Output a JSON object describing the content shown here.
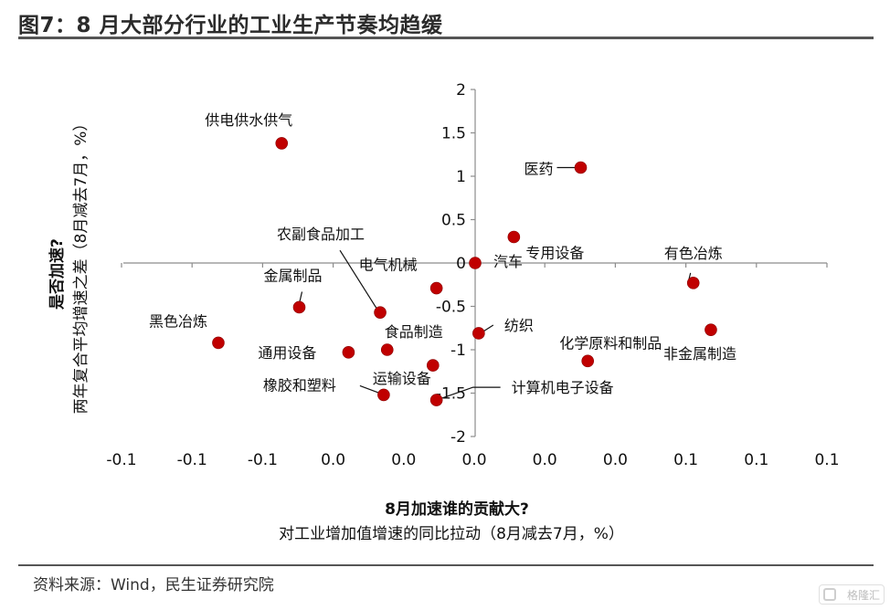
{
  "header": {
    "title": "图7：8 月大部分行业的工业生产节奏均趋缓"
  },
  "footer": {
    "source": "资料来源：Wind，民生证券研究院",
    "watermark": "格隆汇"
  },
  "chart_data": {
    "type": "scatter",
    "title": "图7：8 月大部分行业的工业生产节奏均趋缓",
    "xlabel_bold": "8月加速谁的贡献大?",
    "xlabel": "对工业增加值增速的同比拉动（8月减去7月，%）",
    "ylabel_bold": "是否加速?",
    "ylabel": "两年复合平均增速之差（8月减去7月，%）",
    "xlim": [
      -0.1,
      0.1
    ],
    "ylim": [
      -2,
      2
    ],
    "x_tick_labels": [
      "-0.1",
      "-0.1",
      "-0.1",
      "0.0",
      "0.0",
      "0.0",
      "0.0",
      "0.0",
      "0.1",
      "0.1",
      "0.1"
    ],
    "y_tick_labels": [
      "2",
      "1.5",
      "1",
      "0.5",
      "0",
      "-0.5",
      "-1",
      "-1.5",
      "-2"
    ],
    "grid": false,
    "marker_color": "#c00000",
    "points": [
      {
        "name": "供电供水供气",
        "x": -0.055,
        "y": 1.38
      },
      {
        "name": "医药",
        "x": 0.03,
        "y": 1.1
      },
      {
        "name": "专用设备",
        "x": 0.011,
        "y": 0.3
      },
      {
        "name": "汽车",
        "x": 0.0,
        "y": 0.0
      },
      {
        "name": "有色冶炼",
        "x": 0.062,
        "y": -0.23
      },
      {
        "name": "电气机械",
        "x": -0.011,
        "y": -0.29
      },
      {
        "name": "金属制品",
        "x": -0.05,
        "y": -0.51
      },
      {
        "name": "农副食品加工",
        "x": -0.027,
        "y": -0.57
      },
      {
        "name": "黑色冶炼",
        "x": -0.073,
        "y": -0.92
      },
      {
        "name": "非金属制造",
        "x": 0.067,
        "y": -0.77
      },
      {
        "name": "纺织",
        "x": 0.001,
        "y": -0.81
      },
      {
        "name": "食品制造",
        "x": -0.025,
        "y": -1.0
      },
      {
        "name": "通用设备",
        "x": -0.036,
        "y": -1.03
      },
      {
        "name": "化学原料和制品",
        "x": 0.032,
        "y": -1.13
      },
      {
        "name": "运输设备",
        "x": -0.012,
        "y": -1.18
      },
      {
        "name": "橡胶和塑料",
        "x": -0.026,
        "y": -1.52
      },
      {
        "name": "计算机电子设备",
        "x": -0.011,
        "y": -1.58
      }
    ]
  }
}
